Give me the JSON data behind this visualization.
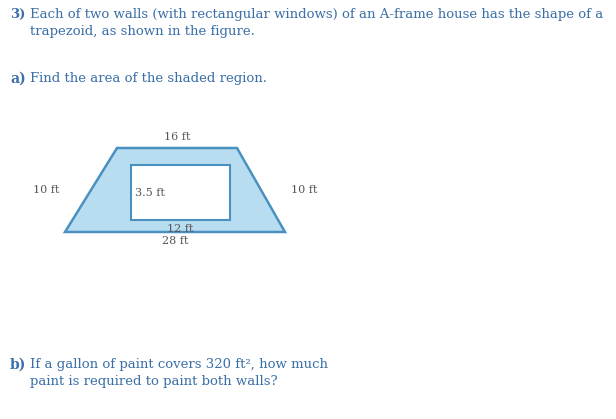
{
  "bg_color": "#ffffff",
  "text_color_dark": "#555555",
  "text_color_blue": "#3a6fa8",
  "trap_fill": "#b8ddf0",
  "trap_edge": "#4a90c0",
  "rect_fill": "#ffffff",
  "rect_edge": "#4a90c0",
  "title_num": "3)",
  "title_line1": "Each of two walls (with rectangular windows) of an A-frame house has the shape of a",
  "title_line2": "trapezoid, as shown in the figure.",
  "part_a_label": "a)",
  "part_a_text": "Find the area of the shaded region.",
  "part_b_label": "b)",
  "part_b_line1": "If a gallon of paint covers 320 ft², how much",
  "part_b_line2": "paint is required to paint both walls?"
}
